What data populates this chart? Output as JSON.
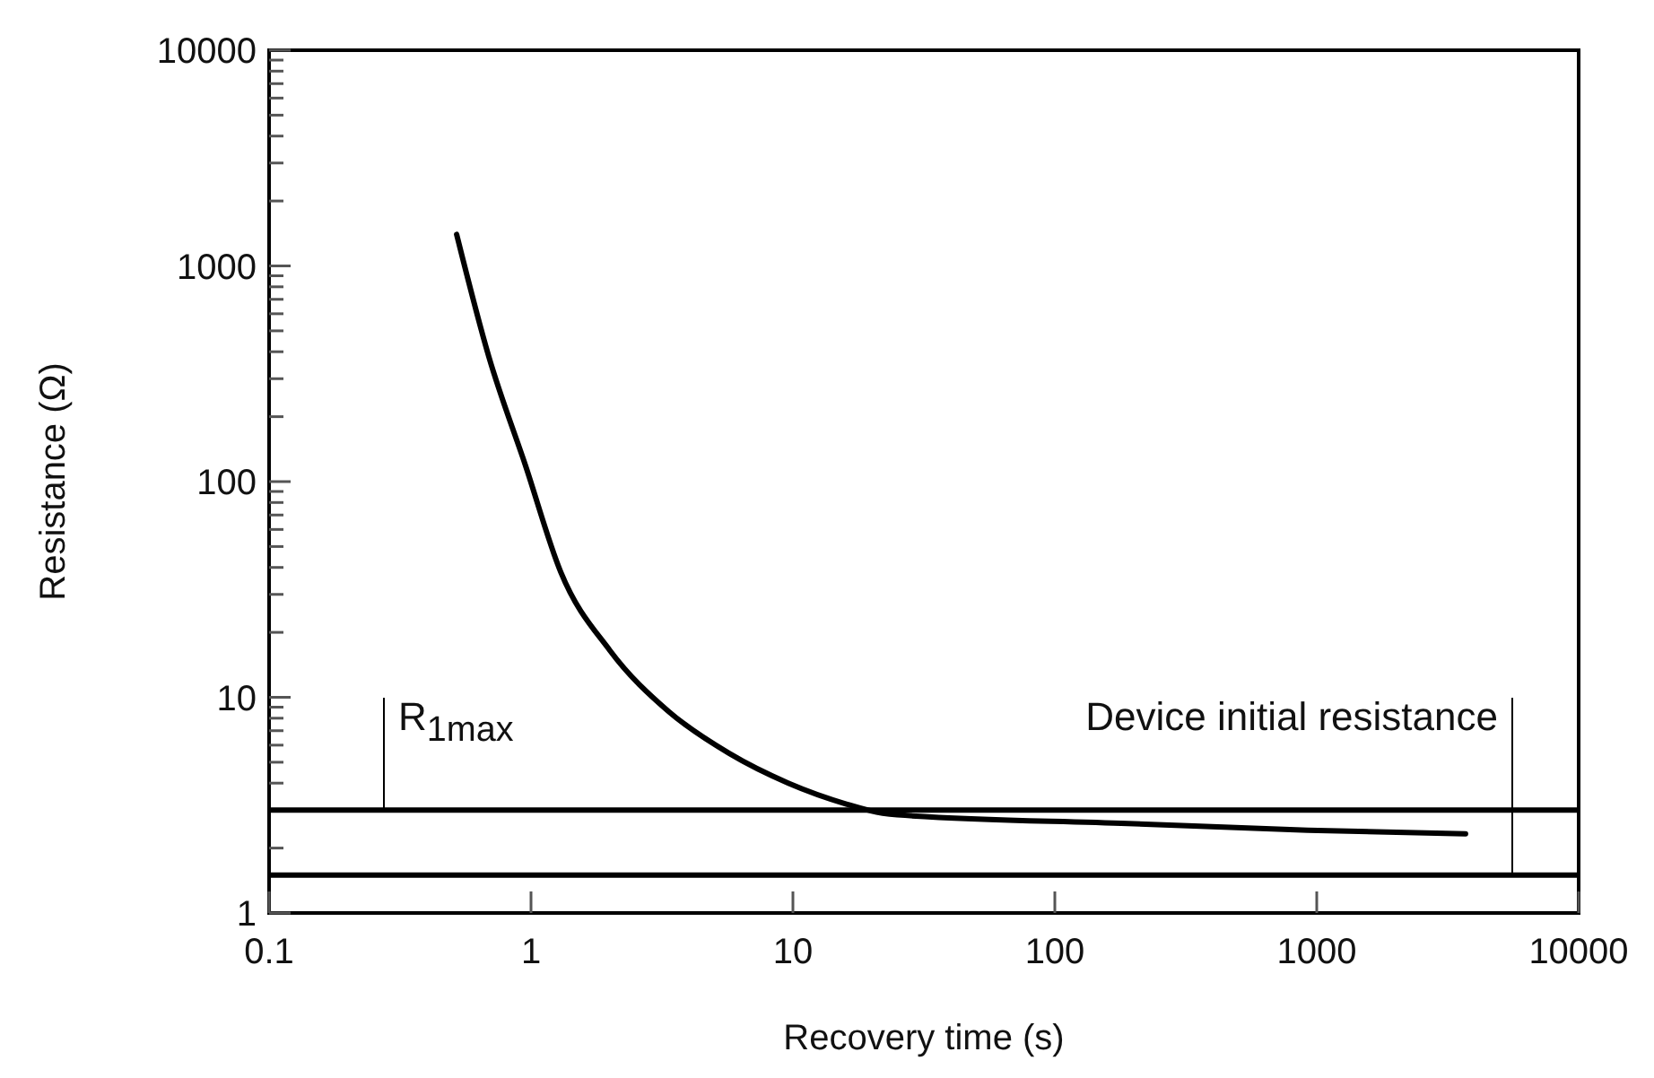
{
  "chart_data": {
    "type": "line",
    "xlabel": "Recovery time (s)",
    "ylabel": "Resistance (Ω)",
    "log": "xy",
    "grid": false,
    "marker": "none",
    "line_style": "solid",
    "xlim": [
      0.1,
      10000
    ],
    "xticks": [
      0.1,
      1,
      10,
      100,
      1000,
      10000
    ],
    "ylim": [
      1,
      10000
    ],
    "yticks": [
      1,
      {
        "value": 2,
        "label": null
      },
      {
        "value": 3,
        "label": null
      },
      {
        "value": 4,
        "label": null
      },
      {
        "value": 5,
        "label": null
      },
      {
        "value": 6,
        "label": null
      },
      {
        "value": 7,
        "label": null
      },
      {
        "value": 8,
        "label": null
      },
      {
        "value": 9,
        "label": null
      },
      10,
      {
        "value": 20,
        "label": null
      },
      {
        "value": 30,
        "label": null
      },
      {
        "value": 40,
        "label": null
      },
      {
        "value": 50,
        "label": null
      },
      {
        "value": 60,
        "label": null
      },
      {
        "value": 70,
        "label": null
      },
      {
        "value": 80,
        "label": null
      },
      {
        "value": 90,
        "label": null
      },
      100,
      {
        "value": 200,
        "label": null
      },
      {
        "value": 300,
        "label": null
      },
      {
        "value": 400,
        "label": null
      },
      {
        "value": 500,
        "label": null
      },
      {
        "value": 600,
        "label": null
      },
      {
        "value": 700,
        "label": null
      },
      {
        "value": 800,
        "label": null
      },
      {
        "value": 900,
        "label": null
      },
      1000,
      {
        "value": 2000,
        "label": null
      },
      {
        "value": 3000,
        "label": null
      },
      {
        "value": 4000,
        "label": null
      },
      {
        "value": 5000,
        "label": null
      },
      {
        "value": 6000,
        "label": null
      },
      {
        "value": 7000,
        "label": null
      },
      {
        "value": 8000,
        "label": null
      },
      {
        "value": 9000,
        "label": null
      },
      10000
    ],
    "series": [
      {
        "color": "#000000",
        "x": [
          0.52,
          0.69,
          0.95,
          1.3,
          2.0,
          3.35,
          5.7,
          9.6,
          16,
          22,
          25,
          190,
          925,
          3700
        ],
        "values": [
          1400,
          380,
          120,
          38,
          16.5,
          8.6,
          5.5,
          4.0,
          3.2,
          2.9,
          2.85,
          2.6,
          2.42,
          2.33
        ]
      }
    ],
    "ref_lines": [
      {
        "axis": "y",
        "value": 3,
        "label": "R$_{1max}$",
        "color": "#000000"
      },
      {
        "axis": "y",
        "value": 1.5,
        "label": "Device initial resistance",
        "color": "#000000"
      }
    ]
  }
}
